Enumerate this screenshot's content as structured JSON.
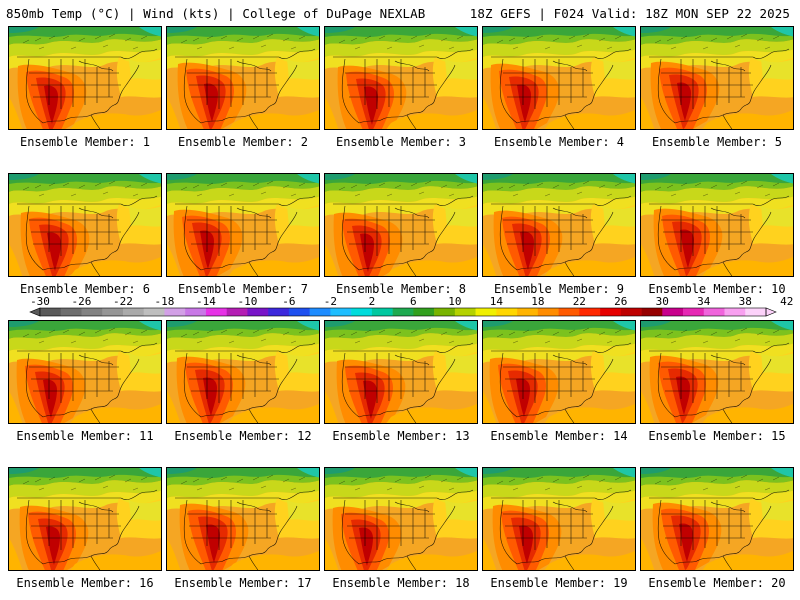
{
  "header": {
    "left_title": "850mb Temp (°C) | Wind (kts) | College of DuPage NEXLAB",
    "right_title": "18Z GEFS | F024 Valid: 18Z MON SEP 22 2025"
  },
  "panels": [
    {
      "label": "Ensemble Member: 1"
    },
    {
      "label": "Ensemble Member: 2"
    },
    {
      "label": "Ensemble Member: 3"
    },
    {
      "label": "Ensemble Member: 4"
    },
    {
      "label": "Ensemble Member: 5"
    },
    {
      "label": "Ensemble Member: 6"
    },
    {
      "label": "Ensemble Member: 7"
    },
    {
      "label": "Ensemble Member: 8"
    },
    {
      "label": "Ensemble Member: 9"
    },
    {
      "label": "Ensemble Member: 10"
    },
    {
      "label": "Ensemble Member: 11"
    },
    {
      "label": "Ensemble Member: 12"
    },
    {
      "label": "Ensemble Member: 13"
    },
    {
      "label": "Ensemble Member: 14"
    },
    {
      "label": "Ensemble Member: 15"
    },
    {
      "label": "Ensemble Member: 16"
    },
    {
      "label": "Ensemble Member: 17"
    },
    {
      "label": "Ensemble Member: 18"
    },
    {
      "label": "Ensemble Member: 19"
    },
    {
      "label": "Ensemble Member: 20"
    }
  ],
  "colorbar": {
    "tick_labels": [
      "-30",
      "-26",
      "-22",
      "-18",
      "-14",
      "-10",
      "-6",
      "-2",
      "2",
      "6",
      "10",
      "14",
      "18",
      "22",
      "26",
      "30",
      "34",
      "38",
      "42"
    ],
    "colors": [
      "#5a5a5a",
      "#6e6e6e",
      "#828282",
      "#969696",
      "#aaaaaa",
      "#bebebe",
      "#d2a0e6",
      "#c878e6",
      "#e632e6",
      "#b41eb4",
      "#7814c8",
      "#3c28dc",
      "#1e50f0",
      "#1e8cff",
      "#1ebeff",
      "#00dcdc",
      "#00c8a0",
      "#1eaa50",
      "#32a01e",
      "#78b400",
      "#b4d200",
      "#f0f000",
      "#ffd700",
      "#ffb400",
      "#ff8c00",
      "#ff5a00",
      "#ff2800",
      "#e60000",
      "#be0000",
      "#960000",
      "#c8008c",
      "#e628b4",
      "#f064dc",
      "#f8a0f0",
      "#fcd2fa"
    ]
  }
}
